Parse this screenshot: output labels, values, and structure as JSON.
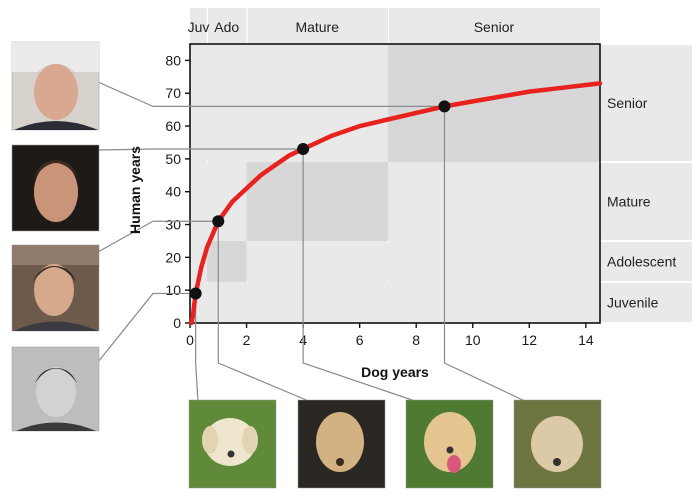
{
  "chart_data": {
    "type": "line",
    "title": "",
    "xlabel": "Dog years",
    "ylabel": "Human years",
    "xlim": [
      0,
      14.5
    ],
    "ylim": [
      0,
      85
    ],
    "xticks": [
      0,
      2,
      4,
      6,
      8,
      10,
      12,
      14
    ],
    "yticks": [
      0,
      10,
      20,
      30,
      40,
      50,
      60,
      70,
      80
    ],
    "grid": false,
    "series": [
      {
        "color": "#e8221e",
        "x": [
          0.05,
          0.1,
          0.2,
          0.4,
          0.6,
          0.8,
          1,
          1.5,
          2,
          2.5,
          3,
          3.5,
          4,
          5,
          6,
          7,
          8,
          9,
          10,
          11,
          12,
          13,
          14,
          14.5
        ],
        "y": [
          0,
          2,
          9,
          17,
          23,
          27,
          31,
          37,
          41,
          45,
          48,
          51,
          53,
          57,
          60,
          62,
          64,
          66,
          67.5,
          69,
          70.5,
          71.5,
          72.5,
          73
        ]
      }
    ],
    "points": [
      {
        "x": 0.2,
        "y": 9
      },
      {
        "x": 1,
        "y": 31
      },
      {
        "x": 4,
        "y": 53
      },
      {
        "x": 9,
        "y": 66
      }
    ],
    "x_stages": [
      {
        "label": "Juv",
        "from": 0,
        "to": 0.6
      },
      {
        "label": "Ado",
        "from": 0.6,
        "to": 2
      },
      {
        "label": "Mature",
        "from": 2,
        "to": 7
      },
      {
        "label": "Senior",
        "from": 7,
        "to": 14.5
      }
    ],
    "y_stages": [
      {
        "label": "Juvenile",
        "from": 0,
        "to": 12.5
      },
      {
        "label": "Adolescent",
        "from": 12.5,
        "to": 25
      },
      {
        "label": "Mature",
        "from": 25,
        "to": 49
      },
      {
        "label": "Senior",
        "from": 49,
        "to": 85
      }
    ],
    "highlight_boxes": [
      {
        "x": [
          0.6,
          2
        ],
        "y": [
          12.5,
          25
        ]
      },
      {
        "x": [
          2,
          7
        ],
        "y": [
          25,
          49
        ]
      },
      {
        "x": [
          7,
          14.5
        ],
        "y": [
          49,
          85
        ]
      }
    ],
    "colors": {
      "background_band": "#e9e9e9",
      "highlight_box": "#d7d7d7",
      "leader_line": "#8a8a8a",
      "point": "#111111"
    }
  },
  "photos": {
    "human": [
      {
        "icon": "human-adult-gray-hair"
      },
      {
        "icon": "human-adult-dark-hair"
      },
      {
        "icon": "human-teenager"
      },
      {
        "icon": "human-child-bw"
      }
    ],
    "dog": [
      {
        "icon": "puppy"
      },
      {
        "icon": "young-dog"
      },
      {
        "icon": "adult-dog"
      },
      {
        "icon": "senior-dog"
      }
    ]
  }
}
